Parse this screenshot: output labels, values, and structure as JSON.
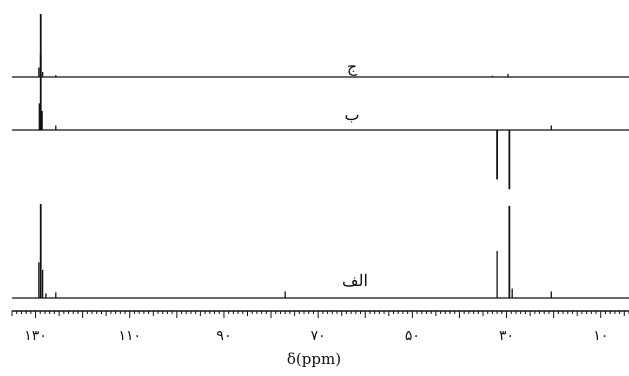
{
  "chart_data": {
    "type": "line",
    "title": "",
    "xlabel": "δ(ppm)",
    "ylabel": "",
    "x_reversed": true,
    "xlim": [
      135,
      4
    ],
    "x_ticks": [
      {
        "value": 130,
        "label": "۱۳۰"
      },
      {
        "value": 110,
        "label": "۱۱۰"
      },
      {
        "value": 90,
        "label": "۹۰"
      },
      {
        "value": 70,
        "label": "۷۰"
      },
      {
        "value": 50,
        "label": "۵۰"
      },
      {
        "value": 30,
        "label": "۳۰"
      },
      {
        "value": 10,
        "label": "۱۰"
      }
    ],
    "minor_tick_step": 1,
    "grid": false,
    "series": [
      {
        "name": "ج",
        "peaks": [
          {
            "x": 128.9,
            "h": 1.0
          },
          {
            "x": 129.3,
            "h": 0.15
          },
          {
            "x": 128.5,
            "h": 0.08
          },
          {
            "x": 125.7,
            "h": 0.03
          },
          {
            "x": 33.0,
            "h": 0.02
          },
          {
            "x": 29.7,
            "h": 0.05
          }
        ]
      },
      {
        "name": "ب",
        "peaks": [
          {
            "x": 128.9,
            "h": 1.0
          },
          {
            "x": 129.2,
            "h": 0.35
          },
          {
            "x": 128.6,
            "h": 0.25
          },
          {
            "x": 125.7,
            "h": 0.06
          },
          {
            "x": 32.0,
            "h": -0.65
          },
          {
            "x": 29.4,
            "h": -0.78
          },
          {
            "x": 20.5,
            "h": 0.06
          }
        ]
      },
      {
        "name": "الف",
        "peaks": [
          {
            "x": 128.9,
            "h": 1.0
          },
          {
            "x": 129.3,
            "h": 0.38
          },
          {
            "x": 128.5,
            "h": 0.3
          },
          {
            "x": 127.8,
            "h": 0.05
          },
          {
            "x": 125.7,
            "h": 0.06
          },
          {
            "x": 77.0,
            "h": 0.07
          },
          {
            "x": 32.0,
            "h": 0.5
          },
          {
            "x": 29.4,
            "h": 0.98
          },
          {
            "x": 28.8,
            "h": 0.1
          },
          {
            "x": 20.5,
            "h": 0.07
          }
        ]
      }
    ]
  }
}
